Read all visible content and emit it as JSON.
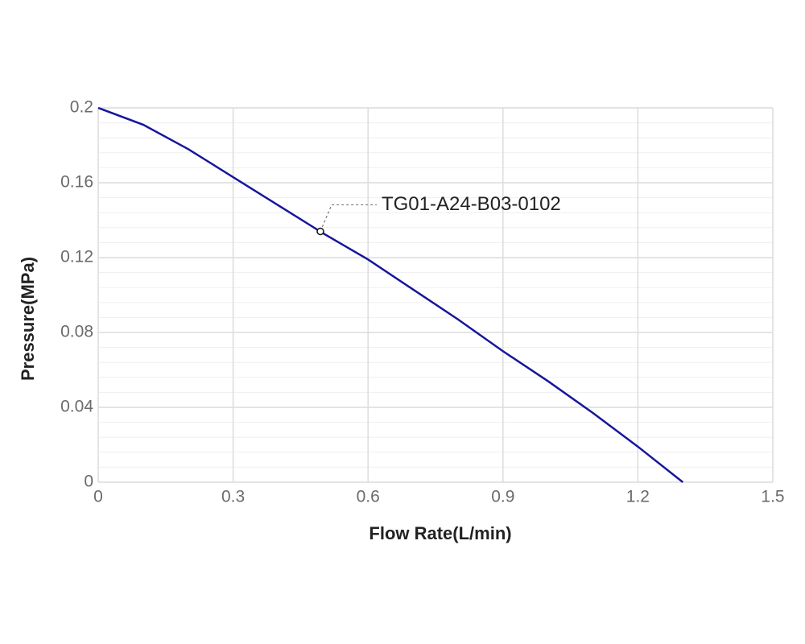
{
  "chart_data": {
    "type": "line",
    "x_label": "Flow Rate(L/min)",
    "y_label": "Pressure(MPa)",
    "x": [
      0,
      0.1,
      0.2,
      0.3,
      0.4,
      0.5,
      0.6,
      0.7,
      0.8,
      0.9,
      1.0,
      1.1,
      1.2,
      1.3
    ],
    "series": [
      {
        "name": "TG01-A24-B03-0102",
        "color": "#16169c",
        "values": [
          0.2,
          0.191,
          0.178,
          0.163,
          0.148,
          0.133,
          0.119,
          0.103,
          0.087,
          0.07,
          0.054,
          0.037,
          0.019,
          0
        ]
      }
    ],
    "annotation": {
      "text": "TG01-A24-B03-0102",
      "x": 0.494,
      "y": 0.134
    },
    "xlim": [
      0,
      1.5
    ],
    "xticks": [
      0,
      0.3,
      0.6,
      0.9,
      1.2,
      1.5
    ],
    "ylim": [
      0,
      0.2
    ],
    "yticks": [
      0,
      0.04,
      0.08,
      0.12,
      0.16,
      0.2
    ],
    "y_minor_divisions": 5,
    "grid": true
  }
}
